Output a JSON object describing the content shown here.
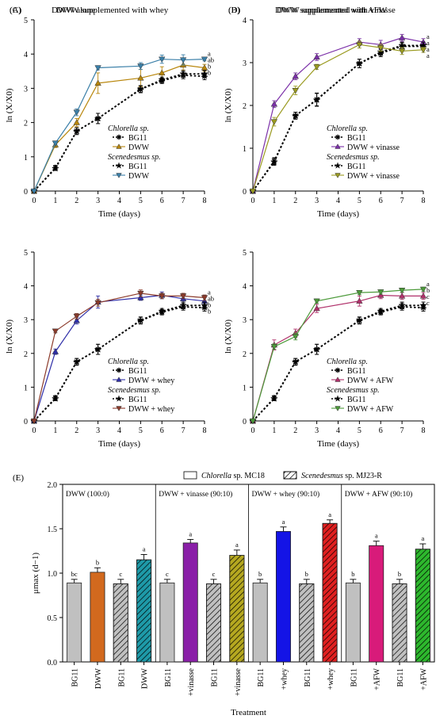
{
  "chart_data": [
    {
      "type": "line",
      "panel": "(A)",
      "title": "DWW alone",
      "xlabel": "Time (days)",
      "ylabel": "ln (X/X0)",
      "xlim": [
        0,
        8
      ],
      "ylim": [
        0,
        5
      ],
      "xticks": [
        0,
        1,
        2,
        3,
        4,
        5,
        6,
        7,
        8
      ],
      "yticks": [
        0,
        1,
        2,
        3,
        4,
        5
      ],
      "legend": [
        {
          "kind": "species",
          "text": "Chlorella sp."
        },
        {
          "kind": "series",
          "series": 0,
          "text": "BG11"
        },
        {
          "kind": "series",
          "series": 1,
          "text": "DWW"
        },
        {
          "kind": "species",
          "text": "Scenedesmus sp."
        },
        {
          "kind": "series",
          "series": 2,
          "text": "BG11"
        },
        {
          "kind": "series",
          "series": 3,
          "text": "DWW"
        }
      ],
      "series": [
        {
          "name": "BG11",
          "marker": "asterisk",
          "color": "#000000",
          "dashed": true,
          "x": [
            0,
            1,
            2,
            3,
            5,
            6,
            7,
            8
          ],
          "y": [
            0,
            0.68,
            1.75,
            2.12,
            2.97,
            3.22,
            3.38,
            3.35
          ],
          "err": [
            0,
            0.07,
            0.1,
            0.15,
            0.1,
            0.08,
            0.1,
            0.1
          ]
        },
        {
          "name": "DWW",
          "marker": "tri-up",
          "color": "#b8860b",
          "dashed": false,
          "x": [
            0,
            1,
            2,
            3,
            5,
            6,
            7,
            8
          ],
          "y": [
            0,
            1.35,
            2.0,
            3.15,
            3.3,
            3.45,
            3.68,
            3.6
          ],
          "err": [
            0,
            0.08,
            0.12,
            0.3,
            0.25,
            0.18,
            0.15,
            0.1
          ]
        },
        {
          "name": "BG11",
          "marker": "star",
          "color": "#000000",
          "dashed": true,
          "x": [
            0,
            1,
            2,
            3,
            5,
            6,
            7,
            8
          ],
          "y": [
            0,
            0.66,
            1.75,
            2.12,
            2.98,
            3.25,
            3.42,
            3.42
          ],
          "err": [
            0,
            0.06,
            0.1,
            0.15,
            0.1,
            0.08,
            0.1,
            0.1
          ]
        },
        {
          "name": "DWW",
          "marker": "tri-down",
          "color": "#3a7fa8",
          "dashed": false,
          "x": [
            0,
            1,
            2,
            3,
            5,
            6,
            7,
            8
          ],
          "y": [
            0,
            1.4,
            2.3,
            3.6,
            3.65,
            3.85,
            3.83,
            3.85
          ],
          "err": [
            0,
            0.06,
            0.1,
            0.06,
            0.1,
            0.12,
            0.15,
            0.05
          ]
        }
      ],
      "end_letters": [
        "a",
        "ab",
        "b",
        "b"
      ]
    },
    {
      "type": "line",
      "panel": "(B)",
      "title": "DWW supplemented with vinasse",
      "xlabel": "Time (days)",
      "ylabel": "ln (X/X0)",
      "xlim": [
        0,
        8
      ],
      "ylim": [
        0,
        4
      ],
      "xticks": [
        0,
        1,
        2,
        3,
        4,
        5,
        6,
        7,
        8
      ],
      "yticks": [
        0,
        1,
        2,
        3,
        4
      ],
      "legend": [
        {
          "kind": "species",
          "text": "Chlorella sp."
        },
        {
          "kind": "series",
          "series": 0,
          "text": "BG11"
        },
        {
          "kind": "series",
          "series": 1,
          "text": "DWW + vinasse"
        },
        {
          "kind": "species",
          "text": "Scenedesmus sp."
        },
        {
          "kind": "series",
          "series": 2,
          "text": "BG11"
        },
        {
          "kind": "series",
          "series": 3,
          "text": "DWW + vinasse"
        }
      ],
      "series": [
        {
          "name": "BG11",
          "marker": "asterisk",
          "color": "#000000",
          "dashed": true,
          "x": [
            0,
            1,
            2,
            3,
            5,
            6,
            7,
            8
          ],
          "y": [
            0,
            0.7,
            1.76,
            2.14,
            2.98,
            3.22,
            3.38,
            3.38
          ],
          "err": [
            0,
            0.08,
            0.08,
            0.15,
            0.1,
            0.08,
            0.08,
            0.08
          ]
        },
        {
          "name": "DWW + vinasse",
          "marker": "tri-up",
          "color": "#7b2fa8",
          "dashed": false,
          "x": [
            0,
            1,
            2,
            3,
            5,
            6,
            7,
            8
          ],
          "y": [
            0,
            2.03,
            2.68,
            3.13,
            3.48,
            3.42,
            3.58,
            3.48
          ],
          "err": [
            0,
            0.08,
            0.08,
            0.08,
            0.08,
            0.1,
            0.08,
            0.08
          ]
        },
        {
          "name": "BG11",
          "marker": "star",
          "color": "#000000",
          "dashed": true,
          "x": [
            0,
            1,
            2,
            3,
            5,
            6,
            7,
            8
          ],
          "y": [
            0,
            0.68,
            1.76,
            2.13,
            2.98,
            3.25,
            3.4,
            3.4
          ],
          "err": [
            0,
            0.08,
            0.08,
            0.15,
            0.1,
            0.08,
            0.08,
            0.08
          ]
        },
        {
          "name": "DWW + vinasse",
          "marker": "tri-down",
          "color": "#9a9a20",
          "dashed": false,
          "x": [
            0,
            1,
            2,
            3,
            5,
            6,
            7,
            8
          ],
          "y": [
            0,
            1.62,
            2.35,
            2.9,
            3.42,
            3.35,
            3.27,
            3.3
          ],
          "err": [
            0,
            0.1,
            0.1,
            0.06,
            0.08,
            0.08,
            0.08,
            0.06
          ]
        }
      ],
      "end_letters": [
        "a",
        "a",
        "a",
        "a"
      ]
    },
    {
      "type": "line",
      "panel": "(C)",
      "title": "DWW supplemented with whey",
      "xlabel": "Time (days)",
      "ylabel": "ln (X/X0)",
      "xlim": [
        0,
        8
      ],
      "ylim": [
        0,
        5
      ],
      "xticks": [
        0,
        1,
        2,
        3,
        4,
        5,
        6,
        7,
        8
      ],
      "yticks": [
        0,
        1,
        2,
        3,
        4,
        5
      ],
      "legend": [
        {
          "kind": "species",
          "text": "Chlorella sp."
        },
        {
          "kind": "series",
          "series": 0,
          "text": "BG11"
        },
        {
          "kind": "series",
          "series": 1,
          "text": "DWW + whey"
        },
        {
          "kind": "species",
          "text": "Scenedesmus sp."
        },
        {
          "kind": "series",
          "series": 2,
          "text": "BG11"
        },
        {
          "kind": "series",
          "series": 3,
          "text": "DWW + whey"
        }
      ],
      "series": [
        {
          "name": "BG11",
          "marker": "asterisk",
          "color": "#000000",
          "dashed": true,
          "x": [
            0,
            1,
            2,
            3,
            5,
            6,
            7,
            8
          ],
          "y": [
            0,
            0.68,
            1.75,
            2.12,
            2.97,
            3.22,
            3.38,
            3.35
          ],
          "err": [
            0,
            0.07,
            0.1,
            0.15,
            0.1,
            0.08,
            0.1,
            0.1
          ]
        },
        {
          "name": "DWW + whey",
          "marker": "tri-up",
          "color": "#2e2ea8",
          "dashed": false,
          "x": [
            0,
            1,
            2,
            3,
            5,
            6,
            7,
            8
          ],
          "y": [
            0,
            2.05,
            2.97,
            3.52,
            3.65,
            3.72,
            3.62,
            3.55
          ],
          "err": [
            0,
            0.08,
            0.1,
            0.18,
            0.08,
            0.1,
            0.1,
            0.1
          ]
        },
        {
          "name": "BG11",
          "marker": "star",
          "color": "#000000",
          "dashed": true,
          "x": [
            0,
            1,
            2,
            3,
            5,
            6,
            7,
            8
          ],
          "y": [
            0,
            0.66,
            1.75,
            2.12,
            2.98,
            3.25,
            3.42,
            3.42
          ],
          "err": [
            0,
            0.06,
            0.1,
            0.15,
            0.1,
            0.08,
            0.1,
            0.1
          ]
        },
        {
          "name": "DWW + whey",
          "marker": "tri-down",
          "color": "#8b3a2a",
          "dashed": false,
          "x": [
            0,
            1,
            2,
            3,
            5,
            6,
            7,
            8
          ],
          "y": [
            0,
            2.66,
            3.1,
            3.5,
            3.78,
            3.7,
            3.7,
            3.65
          ],
          "err": [
            0,
            0.05,
            0.08,
            0.1,
            0.1,
            0.08,
            0.08,
            0.08
          ]
        }
      ],
      "end_letters": [
        "a",
        "ab",
        "b",
        "b"
      ]
    },
    {
      "type": "line",
      "panel": "(D)",
      "title": "DWW supplemented with AFW",
      "xlabel": "Time (days)",
      "ylabel": "ln (X/X0)",
      "xlim": [
        0,
        8
      ],
      "ylim": [
        0,
        5
      ],
      "xticks": [
        0,
        1,
        2,
        3,
        4,
        5,
        6,
        7,
        8
      ],
      "yticks": [
        0,
        1,
        2,
        3,
        4,
        5
      ],
      "legend": [
        {
          "kind": "species",
          "text": "Chlorella sp."
        },
        {
          "kind": "series",
          "series": 0,
          "text": "BG11"
        },
        {
          "kind": "series",
          "series": 1,
          "text": "DWW + AFW"
        },
        {
          "kind": "species",
          "text": "Scenedesmus sp."
        },
        {
          "kind": "series",
          "series": 2,
          "text": "BG11"
        },
        {
          "kind": "series",
          "series": 3,
          "text": "DWW + AFW"
        }
      ],
      "series": [
        {
          "name": "BG11",
          "marker": "asterisk",
          "color": "#000000",
          "dashed": true,
          "x": [
            0,
            1,
            2,
            3,
            5,
            6,
            7,
            8
          ],
          "y": [
            0,
            0.68,
            1.75,
            2.12,
            2.97,
            3.22,
            3.38,
            3.35
          ],
          "err": [
            0,
            0.07,
            0.1,
            0.15,
            0.1,
            0.08,
            0.1,
            0.1
          ]
        },
        {
          "name": "DWW + AFW",
          "marker": "tri-up",
          "color": "#b0306a",
          "dashed": false,
          "x": [
            0,
            1,
            2,
            3,
            5,
            6,
            7,
            8
          ],
          "y": [
            0,
            2.25,
            2.6,
            3.33,
            3.55,
            3.72,
            3.7,
            3.7
          ],
          "err": [
            0,
            0.15,
            0.12,
            0.12,
            0.15,
            0.1,
            0.1,
            0.1
          ]
        },
        {
          "name": "BG11",
          "marker": "star",
          "color": "#000000",
          "dashed": true,
          "x": [
            0,
            1,
            2,
            3,
            5,
            6,
            7,
            8
          ],
          "y": [
            0,
            0.66,
            1.75,
            2.12,
            2.98,
            3.25,
            3.42,
            3.42
          ],
          "err": [
            0,
            0.06,
            0.1,
            0.15,
            0.1,
            0.08,
            0.1,
            0.1
          ]
        },
        {
          "name": "DWW + AFW",
          "marker": "tri-down",
          "color": "#4c9a3a",
          "dashed": false,
          "x": [
            0,
            1,
            2,
            3,
            5,
            6,
            7,
            8
          ],
          "y": [
            0,
            2.2,
            2.5,
            3.55,
            3.8,
            3.82,
            3.87,
            3.9
          ],
          "err": [
            0,
            0.08,
            0.1,
            0.06,
            0.06,
            0.06,
            0.06,
            0.06
          ]
        }
      ],
      "end_letters": [
        "a",
        "b",
        "c",
        "c"
      ]
    },
    {
      "type": "bar",
      "panel": "(E)",
      "xlabel": "Treatment",
      "ylabel": "μmax (d−1)",
      "ylim": [
        0,
        2.0
      ],
      "yticks": [
        "0.0",
        "0.5",
        "1.0",
        "1.5",
        "2.0"
      ],
      "legend": [
        {
          "text_italic": "Chlorella",
          "text": " sp. MC18",
          "pattern": "solid"
        },
        {
          "text_italic": "Scenedesmus",
          "text": " sp. MJ23-R",
          "pattern": "hatch"
        }
      ],
      "groups": [
        {
          "label": "DWW (100:0)",
          "bars": [
            0,
            1,
            2,
            3
          ]
        },
        {
          "label": "DWW + vinasse (90:10)",
          "bars": [
            4,
            5,
            6,
            7
          ]
        },
        {
          "label": "DWW + whey (90:10)",
          "bars": [
            8,
            9,
            10,
            11
          ]
        },
        {
          "label": "DWW + AFW (90:10)",
          "bars": [
            12,
            13,
            14,
            15
          ]
        }
      ],
      "categories": [
        "BG11",
        "DWW",
        "BG11",
        "DWW",
        "BG11",
        "+vinasse",
        "BG11",
        "+vinasse",
        "BG11",
        "+whey",
        "BG11",
        "+whey",
        "BG11",
        "+AFW",
        "BG11",
        "+AFW"
      ],
      "values": [
        0.89,
        1.01,
        0.88,
        1.15,
        0.89,
        1.34,
        0.88,
        1.2,
        0.89,
        1.47,
        0.88,
        1.56,
        0.89,
        1.31,
        0.88,
        1.27
      ],
      "errors": [
        0.04,
        0.05,
        0.05,
        0.06,
        0.04,
        0.04,
        0.05,
        0.06,
        0.04,
        0.05,
        0.05,
        0.04,
        0.04,
        0.05,
        0.05,
        0.06
      ],
      "letters": [
        "bc",
        "b",
        "c",
        "a",
        "c",
        "a",
        "c",
        "a",
        "b",
        "a",
        "b",
        "a",
        "b",
        "a",
        "b",
        "a"
      ],
      "colors": [
        "#c0c0c0",
        "#d2691e",
        "#c0c0c0",
        "#1e9aa8",
        "#c0c0c0",
        "#8a1fa8",
        "#c0c0c0",
        "#b5a820",
        "#c0c0c0",
        "#1414e6",
        "#c0c0c0",
        "#e02020",
        "#c0c0c0",
        "#d81b7a",
        "#c0c0c0",
        "#2db82d"
      ],
      "hatched": [
        false,
        false,
        true,
        true,
        false,
        false,
        true,
        true,
        false,
        false,
        true,
        true,
        false,
        false,
        true,
        true
      ]
    }
  ]
}
